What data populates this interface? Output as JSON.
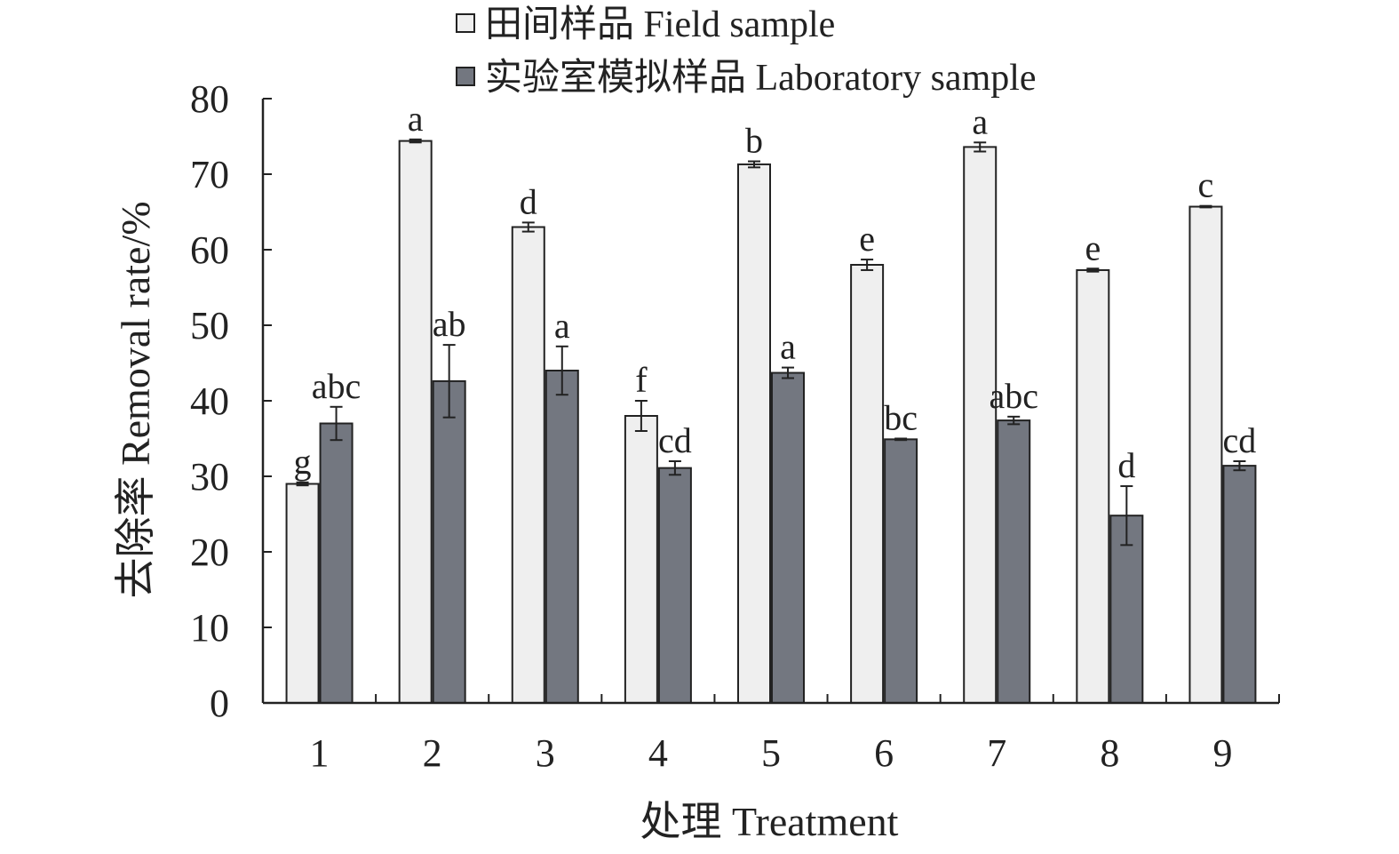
{
  "chart_data": {
    "type": "bar",
    "categories": [
      "1",
      "2",
      "3",
      "4",
      "5",
      "6",
      "7",
      "8",
      "9"
    ],
    "xlabel": "处理 Treatment",
    "ylabel": "去除率 Removal rate/%",
    "ylim": [
      0,
      80
    ],
    "yticks": [
      0,
      10,
      20,
      30,
      40,
      50,
      60,
      70,
      80
    ],
    "grid": false,
    "legend_position": "top",
    "series": [
      {
        "name": "田间样品 Field sample",
        "color": "#efefef",
        "values": [
          29.0,
          74.4,
          63.0,
          38.0,
          71.3,
          58.0,
          73.6,
          57.3,
          65.7
        ],
        "errors": [
          0.2,
          0.2,
          0.6,
          2.0,
          0.4,
          0.7,
          0.6,
          0.2,
          0.1
        ],
        "labels": [
          "g",
          "a",
          "d",
          "f",
          "b",
          "e",
          "a",
          "e",
          "c"
        ]
      },
      {
        "name": "实验室模拟样品 Laboratory sample",
        "color": "#737780",
        "values": [
          37.0,
          42.6,
          44.0,
          31.1,
          43.7,
          34.9,
          37.4,
          24.8,
          31.4
        ],
        "errors": [
          2.2,
          4.8,
          3.2,
          0.9,
          0.7,
          0.1,
          0.5,
          3.9,
          0.6
        ],
        "labels": [
          "abc",
          "ab",
          "a",
          "cd",
          "a",
          "bc",
          "abc",
          "d",
          "cd"
        ]
      }
    ]
  }
}
